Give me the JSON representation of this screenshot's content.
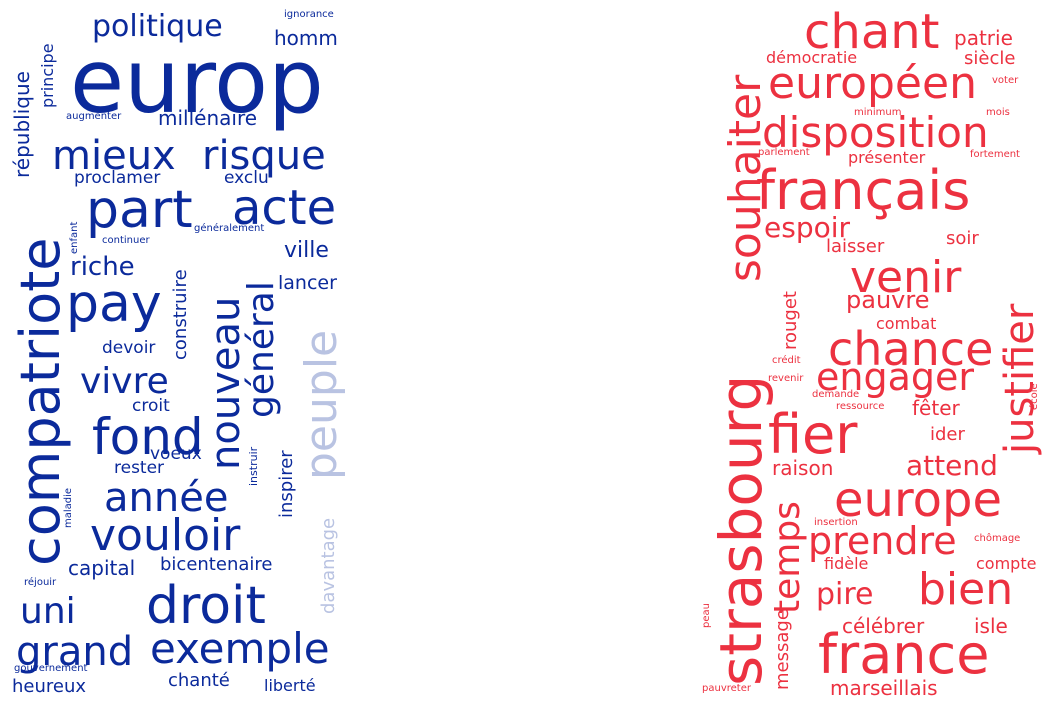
{
  "colors": {
    "blue": "#0b2a9b",
    "light_blue": "#b9c3e2",
    "red": "#ec3140"
  },
  "left_cloud": {
    "words": [
      "europ",
      "pay",
      "part",
      "acte",
      "mieux",
      "risque",
      "droit",
      "exemple",
      "fond",
      "vouloir",
      "année",
      "compatriote",
      "nouveau",
      "général",
      "peuple",
      "grand",
      "uni",
      "vivre",
      "riche",
      "politique",
      "homm",
      "millénaire",
      "république",
      "principe",
      "proclamer",
      "exclu",
      "construire",
      "ville",
      "lancer",
      "devoir",
      "croit",
      "voeux",
      "rester",
      "capital",
      "bicentenaire",
      "heureux",
      "chanté",
      "liberté",
      "inspirer",
      "davantage",
      "instruir",
      "maladie",
      "réjouir",
      "gouvernement",
      "augmenter",
      "ignorance",
      "enfant",
      "continuer",
      "généralement"
    ]
  },
  "right_cloud": {
    "words": [
      "chant",
      "européen",
      "démocratie",
      "patrie",
      "siècle",
      "disposition",
      "souhaiter",
      "français",
      "espoir",
      "laisser",
      "soir",
      "justifier",
      "venir",
      "pauvre",
      "combat",
      "rouget",
      "chance",
      "engager",
      "strasbourg",
      "fier",
      "fêter",
      "ider",
      "europe",
      "attend",
      "raison",
      "temps",
      "prendre",
      "bien",
      "pire",
      "france",
      "célébrer",
      "isle",
      "marseillais",
      "message",
      "fidèle",
      "compte",
      "insertion",
      "chômage",
      "crédit",
      "revenir",
      "demande",
      "ressource",
      "école",
      "parlement",
      "présenter",
      "fortement",
      "minimum",
      "mois",
      "voter",
      "peau",
      "pauvreter"
    ]
  }
}
